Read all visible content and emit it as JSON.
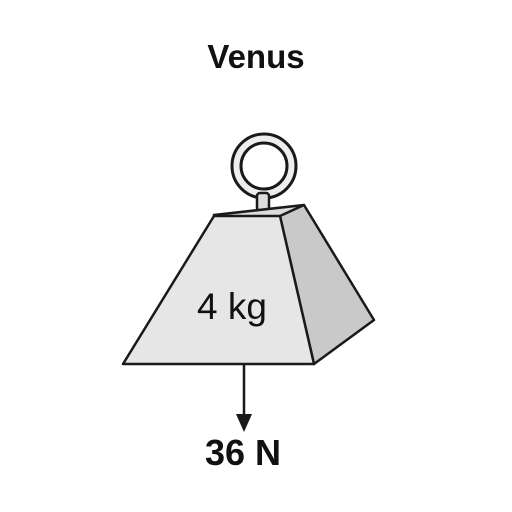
{
  "title": "Venus",
  "mass_label": "4 kg",
  "force_label": "36 N",
  "colors": {
    "outline": "#1a1a1a",
    "front_face": "#e6e6e6",
    "side_face": "#c9c9c9",
    "top_face": "#dcdcdc",
    "ring_fill": "#eeeeee",
    "text": "#111111"
  }
}
